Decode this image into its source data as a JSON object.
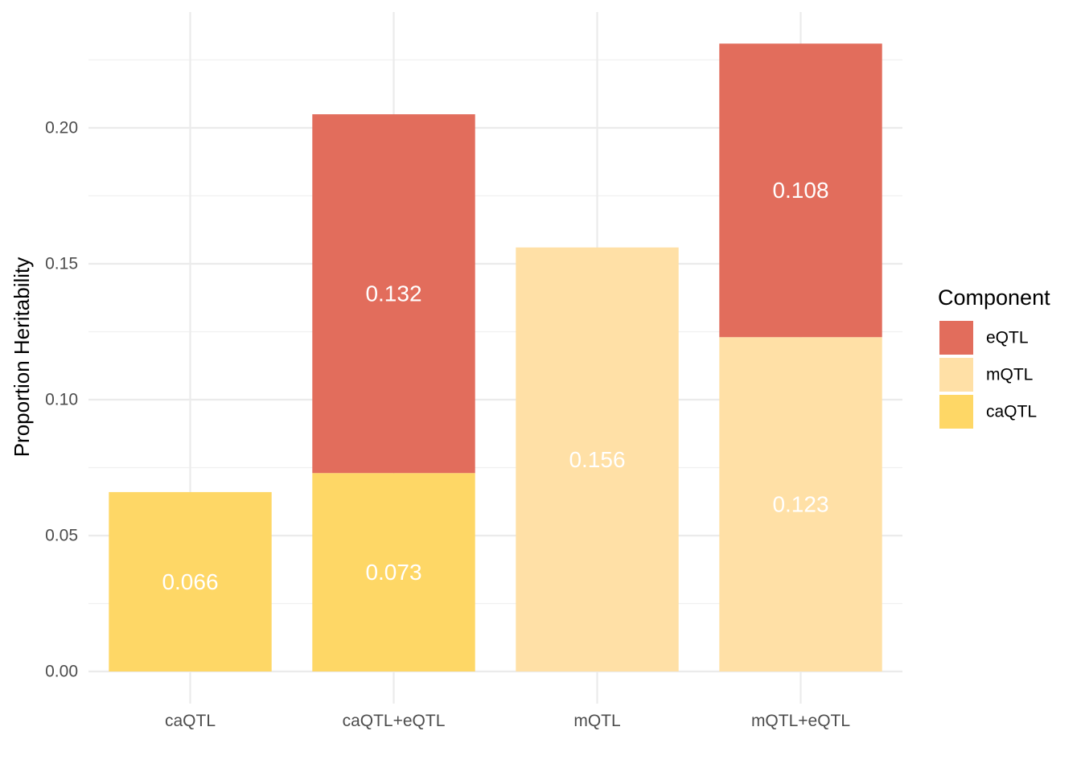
{
  "chart_data": {
    "type": "bar",
    "stacked": true,
    "categories": [
      "caQTL",
      "caQTL+eQTL",
      "mQTL",
      "mQTL+eQTL"
    ],
    "series": [
      {
        "name": "caQTL",
        "color": "#FED766",
        "values": [
          0.066,
          0.073,
          0,
          0
        ]
      },
      {
        "name": "mQTL",
        "color": "#FFE0A6",
        "values": [
          0,
          0,
          0.156,
          0.123
        ]
      },
      {
        "name": "eQTL",
        "color": "#E26D5C",
        "values": [
          0,
          0.132,
          0,
          0.108
        ]
      }
    ],
    "data_labels": [
      [
        "0.066",
        "0.073",
        "",
        ""
      ],
      [
        "",
        "",
        "0.156",
        "0.123"
      ],
      [
        "",
        "0.132",
        "",
        "0.108"
      ]
    ],
    "ylabel": "Proportion Heritability",
    "xlabel": "",
    "ylim": [
      0,
      0.23
    ],
    "yticks": [
      0,
      0.05,
      0.1,
      0.15,
      0.2
    ],
    "ytick_labels": [
      "0.00",
      "0.05",
      "0.10",
      "0.15",
      "0.20"
    ],
    "grid": true,
    "legend": {
      "title": "Component",
      "placement": "right",
      "order": [
        "eQTL",
        "mQTL",
        "caQTL"
      ]
    }
  }
}
